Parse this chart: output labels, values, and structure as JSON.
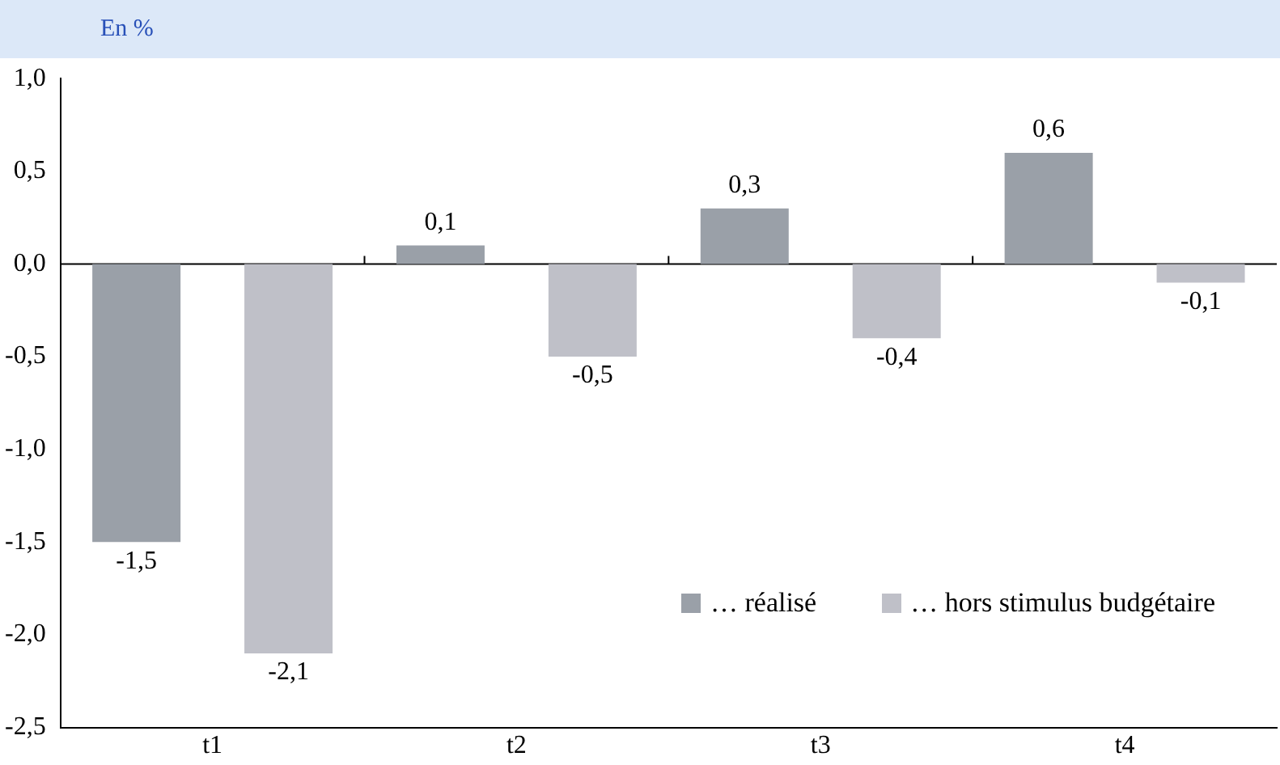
{
  "chart_data": {
    "type": "bar",
    "ylabel": "En %",
    "categories": [
      "t1",
      "t2",
      "t3",
      "t4"
    ],
    "series": [
      {
        "name": "… réalisé",
        "color": "#9aa0a8",
        "values": [
          -1.5,
          0.1,
          0.3,
          0.6
        ],
        "value_labels": [
          "-1,5",
          "0,1",
          "0,3",
          "0,6"
        ]
      },
      {
        "name": "… hors stimulus budgétaire",
        "color": "#bfc0c8",
        "values": [
          -2.1,
          -0.5,
          -0.4,
          -0.1
        ],
        "value_labels": [
          "-2,1",
          "-0,5",
          "-0,4",
          "-0,1"
        ]
      }
    ],
    "ylim": [
      -2.5,
      1.0
    ],
    "yticks": [
      {
        "value": -2.5,
        "label": "-2,5"
      },
      {
        "value": -2.0,
        "label": "-2,0"
      },
      {
        "value": -1.5,
        "label": "-1,5"
      },
      {
        "value": -1.0,
        "label": "-1,0"
      },
      {
        "value": -0.5,
        "label": "-0,5"
      },
      {
        "value": 0,
        "label": "0,0"
      },
      {
        "value": 0.5,
        "label": "0,5"
      },
      {
        "value": 1.0,
        "label": "1,0"
      }
    ],
    "ref_lines": [
      {
        "axis": "y",
        "value": 0,
        "color": "#000000"
      }
    ],
    "grid": false,
    "legend": "bottom right"
  }
}
